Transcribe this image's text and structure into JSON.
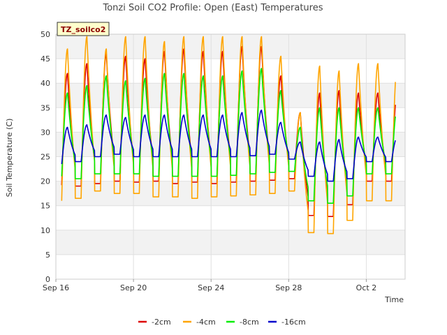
{
  "chart_data": {
    "type": "line",
    "title": "Tonzi Soil CO2 Profile: Open (East) Temperatures",
    "xlabel": "Time",
    "ylabel": "Soil Temperature (C)",
    "badge": "TZ_soilco2",
    "ylim": [
      0,
      50
    ],
    "yticks": [
      0,
      5,
      10,
      15,
      20,
      25,
      30,
      35,
      40,
      45,
      50
    ],
    "xlim": [
      0,
      18
    ],
    "xticks": [
      {
        "label": "Sep 16",
        "x": 0
      },
      {
        "label": "Sep 20",
        "x": 4
      },
      {
        "label": "Sep 24",
        "x": 8
      },
      {
        "label": "Sep 28",
        "x": 12
      },
      {
        "label": "Oct 2",
        "x": 16
      }
    ],
    "grid": true,
    "legend_position": "bottom",
    "series": [
      {
        "name": "-2cm",
        "color": "#dd0000",
        "minima": [
          19.2,
          19.0,
          19.5,
          20.0,
          19.8,
          20.0,
          19.5,
          19.8,
          19.5,
          19.8,
          20.0,
          20.2,
          20.5,
          13.0,
          12.8,
          15.2,
          20.0
        ],
        "maxima": [
          42.0,
          44.0,
          46.0,
          45.5,
          45.0,
          46.5,
          47.0,
          46.5,
          46.5,
          47.5,
          47.5,
          41.5,
          34.0,
          38.0,
          38.5,
          38.0
        ]
      },
      {
        "name": "-4cm",
        "color": "#ffa500",
        "minima": [
          16.0,
          16.5,
          18.0,
          17.5,
          17.5,
          16.8,
          16.8,
          16.5,
          16.8,
          17.0,
          17.2,
          17.5,
          18.0,
          9.5,
          9.3,
          12.0,
          16.0
        ],
        "maxima": [
          47.0,
          49.5,
          47.0,
          49.5,
          49.5,
          48.5,
          49.5,
          49.5,
          49.5,
          49.5,
          49.5,
          45.5,
          34.0,
          43.5,
          42.5,
          44.0
        ]
      },
      {
        "name": "-8cm",
        "color": "#00ee00",
        "minima": [
          21.0,
          20.5,
          21.5,
          21.5,
          21.5,
          21.0,
          21.0,
          21.0,
          21.0,
          21.2,
          21.5,
          21.8,
          22.0,
          16.0,
          15.5,
          17.0,
          21.5
        ],
        "maxima": [
          38.0,
          39.5,
          41.5,
          40.5,
          41.0,
          42.0,
          42.0,
          41.5,
          41.5,
          42.5,
          43.0,
          38.5,
          31.0,
          35.0,
          35.0,
          35.0
        ]
      },
      {
        "name": "-16cm",
        "color": "#0000cc",
        "minima": [
          23.5,
          24.0,
          25.0,
          25.5,
          25.0,
          25.0,
          25.0,
          25.0,
          25.0,
          25.0,
          25.2,
          25.5,
          24.5,
          21.0,
          20.0,
          20.5,
          24.0
        ],
        "maxima": [
          31.0,
          31.5,
          33.5,
          33.0,
          33.5,
          33.5,
          33.5,
          33.5,
          33.5,
          34.0,
          34.5,
          32.0,
          28.0,
          28.0,
          28.5,
          29.0
        ]
      }
    ]
  }
}
